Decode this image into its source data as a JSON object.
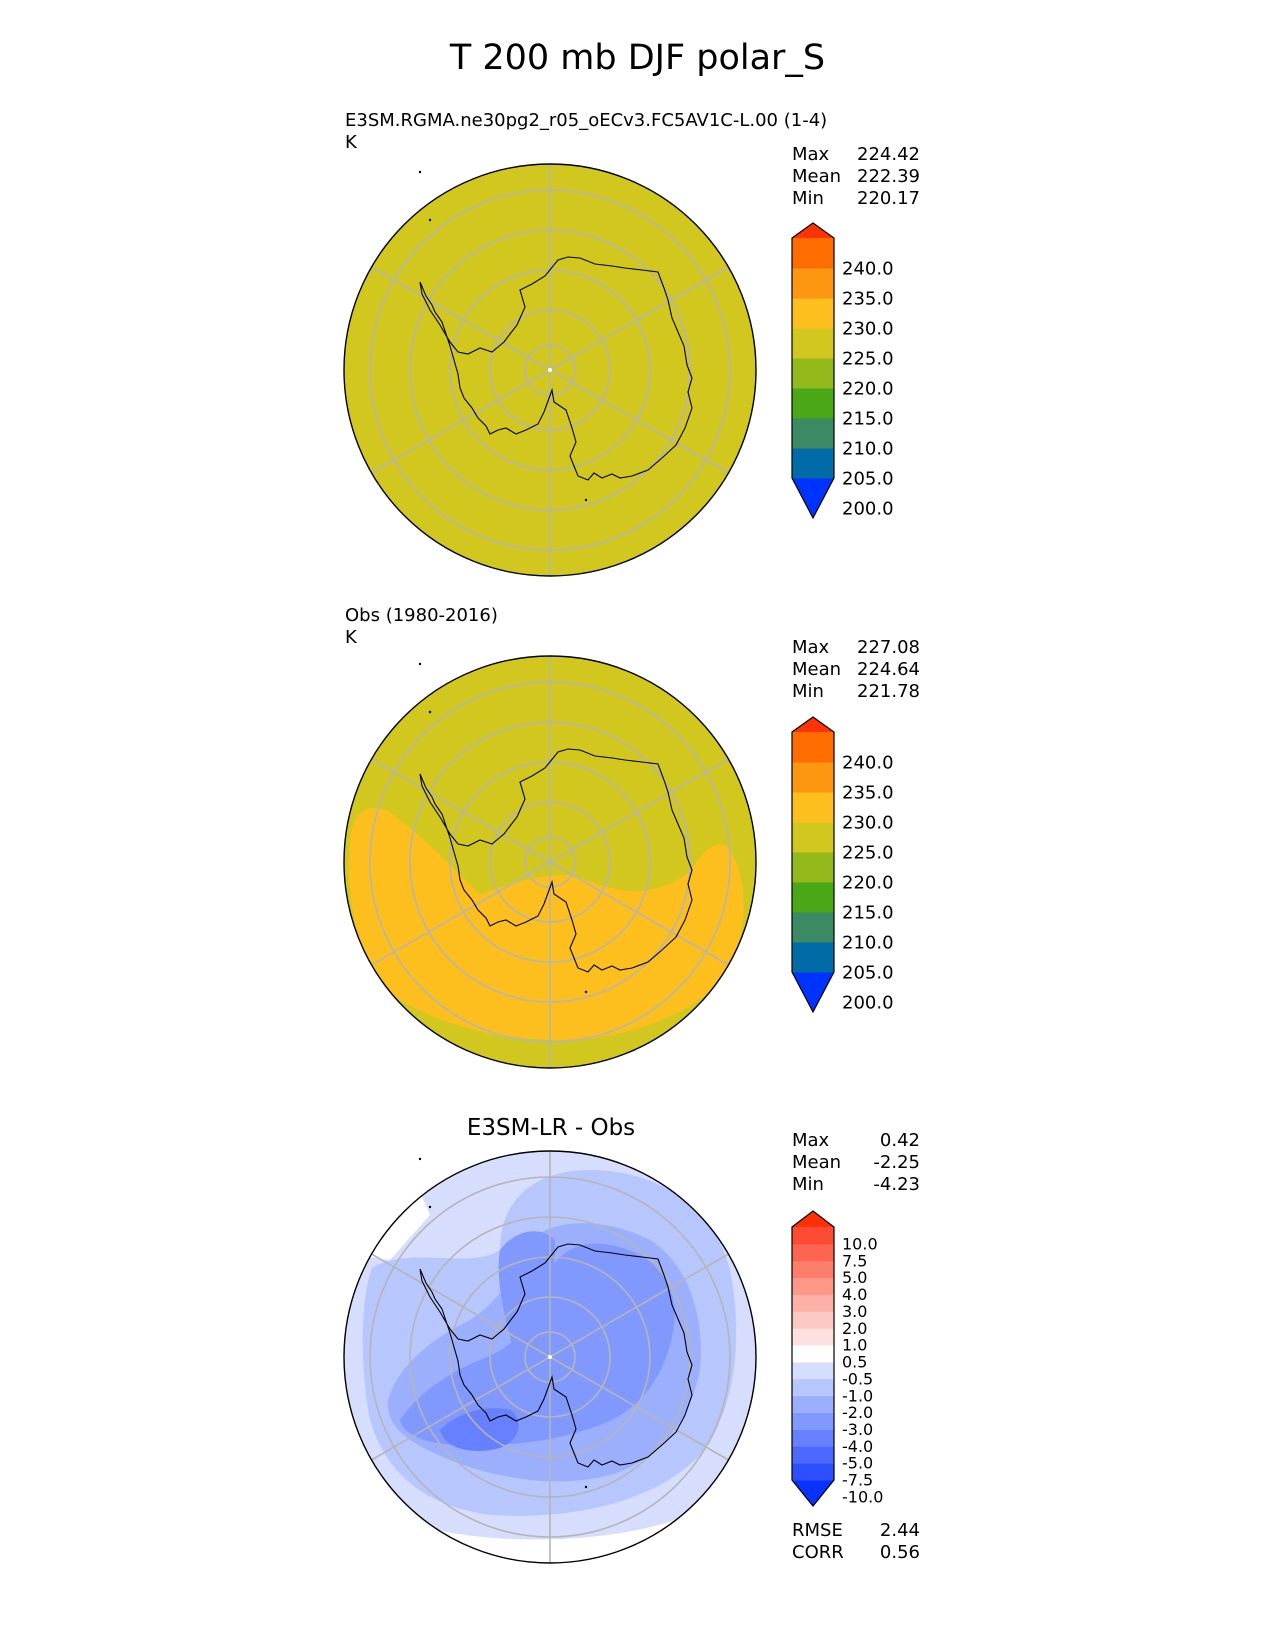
{
  "title": "T 200 mb DJF polar_S",
  "panels": [
    {
      "name": "E3SM.RGMA.ne30pg2_r05_oECv3.FC5AV1C-L.00 (1-4)",
      "units": "K",
      "stats": [
        {
          "label": "Max",
          "value": "224.42"
        },
        {
          "label": "Mean",
          "value": "222.39"
        },
        {
          "label": "Min",
          "value": "220.17"
        }
      ]
    },
    {
      "name": "Obs (1980-2016)",
      "units": "K",
      "stats": [
        {
          "label": "Max",
          "value": "227.08"
        },
        {
          "label": "Mean",
          "value": "224.64"
        },
        {
          "label": "Min",
          "value": "221.78"
        }
      ]
    },
    {
      "name": "E3SM-LR - Obs",
      "stats": [
        {
          "label": "Max",
          "value": "0.42"
        },
        {
          "label": "Mean",
          "value": "-2.25"
        },
        {
          "label": "Min",
          "value": "-4.23"
        }
      ],
      "metrics": [
        {
          "label": "RMSE",
          "value": "2.44"
        },
        {
          "label": "CORR",
          "value": "0.56"
        }
      ]
    }
  ],
  "colorbars": {
    "main": {
      "ticks": [
        "240.0",
        "235.0",
        "230.0",
        "225.0",
        "220.0",
        "215.0",
        "210.0",
        "205.0",
        "200.0"
      ],
      "colors": [
        "#0033ff",
        "#006ba6",
        "#3b8a63",
        "#4aa817",
        "#93b91a",
        "#d1c71f",
        "#fcbf1e",
        "#fd9712",
        "#ff6c00",
        "#ff3306"
      ]
    },
    "diff": {
      "ticks": [
        "10.0",
        "7.5",
        "5.0",
        "4.0",
        "3.0",
        "2.0",
        "1.0",
        "0.5",
        "-0.5",
        "-1.0",
        "-2.0",
        "-3.0",
        "-4.0",
        "-5.0",
        "-7.5",
        "-10.0"
      ],
      "colors": [
        "#0a32ff",
        "#2d4fff",
        "#4d68ff",
        "#6680ff",
        "#8199ff",
        "#9caffd",
        "#b7c6fd",
        "#d6ddfd",
        "#ffffff",
        "#fde0df",
        "#fdc9c4",
        "#fdb0a6",
        "#fd9888",
        "#fd7f6b",
        "#fd6550",
        "#fd4a33",
        "#ff2f06"
      ]
    }
  },
  "chart_data": {
    "type": "heatmap",
    "title": "T 200 mb DJF polar_S",
    "projection": "south-polar-stereographic",
    "fields": [
      {
        "panel": "model",
        "range_K": [
          220.17,
          224.42
        ],
        "mean_K": 222.39
      },
      {
        "panel": "obs",
        "range_K": [
          221.78,
          227.08
        ],
        "mean_K": 224.64
      },
      {
        "panel": "difference",
        "range_K": [
          -4.23,
          0.42
        ],
        "mean_K": -2.25,
        "rmse": 2.44,
        "corr": 0.56
      }
    ],
    "colorbar_main_levels": [
      200,
      205,
      210,
      215,
      220,
      225,
      230,
      235,
      240
    ],
    "colorbar_diff_levels": [
      -10,
      -7.5,
      -5,
      -4,
      -3,
      -2,
      -1,
      -0.5,
      0.5,
      1,
      2,
      3,
      4,
      5,
      7.5,
      10
    ]
  }
}
